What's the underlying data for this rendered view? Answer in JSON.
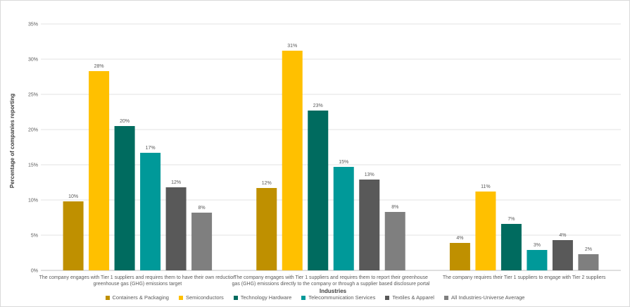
{
  "chart_data": {
    "type": "bar",
    "title": "",
    "xlabel": "Industries",
    "ylabel": "Percentage of companies reporting",
    "ylim": [
      0,
      35
    ],
    "yticks": [
      "0%",
      "5%",
      "10%",
      "15%",
      "20%",
      "25%",
      "30%",
      "35%"
    ],
    "grid": true,
    "legend_position": "bottom",
    "categories": [
      "The company engages with Tier 1 suppliers and requires them to have their own reduction greenhouse gas (GHG) emissions target",
      "The company engages with Tier 1 suppliers and requires them to report their greenhouse gas (GHG) emissions directly to the company or through a supplier based disclosure portal",
      "The company requires their Tier 1 suppliers to engage with Tier 2 suppliers"
    ],
    "category_lines": [
      [
        "The company engages with Tier 1 suppliers and requires them to have their own reduction",
        "greenhouse gas (GHG) emissions target"
      ],
      [
        "The company engages with Tier 1 suppliers and requires them to report their greenhouse",
        "gas (GHG) emissions directly to the company or through a supplier based disclosure portal"
      ],
      [
        "The company requires their Tier 1 suppliers to engage with Tier 2 suppliers"
      ]
    ],
    "series": [
      {
        "name": "Containers & Packaging",
        "color": "#bf9000",
        "values": [
          9.8,
          11.7,
          3.9
        ],
        "labels": [
          "10%",
          "12%",
          "4%"
        ]
      },
      {
        "name": "Semiconductors",
        "color": "#ffc000",
        "values": [
          28.3,
          31.2,
          11.2
        ],
        "labels": [
          "28%",
          "31%",
          "11%"
        ]
      },
      {
        "name": "Technology Hardware",
        "color": "#006b5f",
        "values": [
          20.5,
          22.7,
          6.6
        ],
        "labels": [
          "20%",
          "23%",
          "7%"
        ]
      },
      {
        "name": "Telecommunication Services",
        "color": "#009999",
        "values": [
          16.7,
          14.7,
          2.9
        ],
        "labels": [
          "17%",
          "15%",
          "3%"
        ]
      },
      {
        "name": "Textiles & Apparel",
        "color": "#595959",
        "values": [
          11.8,
          12.9,
          4.3
        ],
        "labels": [
          "12%",
          "13%",
          "4%"
        ]
      },
      {
        "name": "All Industries-Universe Average",
        "color": "#7f7f7f",
        "values": [
          8.2,
          8.3,
          2.3
        ],
        "labels": [
          "8%",
          "8%",
          "2%"
        ]
      }
    ]
  }
}
